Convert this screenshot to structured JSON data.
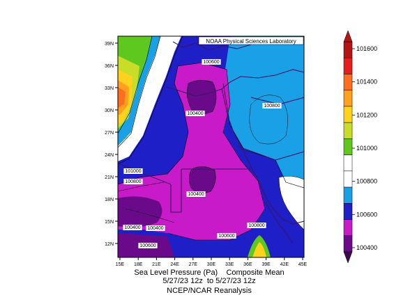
{
  "credit": "NOAA Physical Sciences Laboratory",
  "caption": {
    "line1": "Sea Level Pressure (Pa)    Composite Mean",
    "line2": "5/27/23 12z  to 5/27/23 12z",
    "line3": "NCEP/NCAR Reanalysis"
  },
  "axes": {
    "lat_ticks": [
      "12N",
      "15N",
      "18N",
      "21N",
      "24N",
      "27N",
      "30N",
      "33N",
      "36N",
      "39N"
    ],
    "lon_ticks": [
      "15E",
      "18E",
      "21E",
      "24E",
      "27E",
      "30E",
      "33E",
      "36E",
      "39E",
      "42E",
      "45E"
    ]
  },
  "colorbar": {
    "labels": [
      "100400",
      "100600",
      "100800",
      "101000",
      "101200",
      "101400",
      "101600"
    ],
    "colors": [
      "#6a0a8a",
      "#c81ac8",
      "#1f1fc8",
      "#1aa0e6",
      "#ffffff",
      "#ffffff",
      "#5fc81f",
      "#c8dc28",
      "#ffd21e",
      "#ffa01e",
      "#ff6e1e",
      "#e61e1e",
      "#b41414"
    ]
  },
  "contour_labels": [
    "100600",
    "100400",
    "100800",
    "101000",
    "100800",
    "100400",
    "100400",
    "100400",
    "100600",
    "100600",
    "100800"
  ]
}
